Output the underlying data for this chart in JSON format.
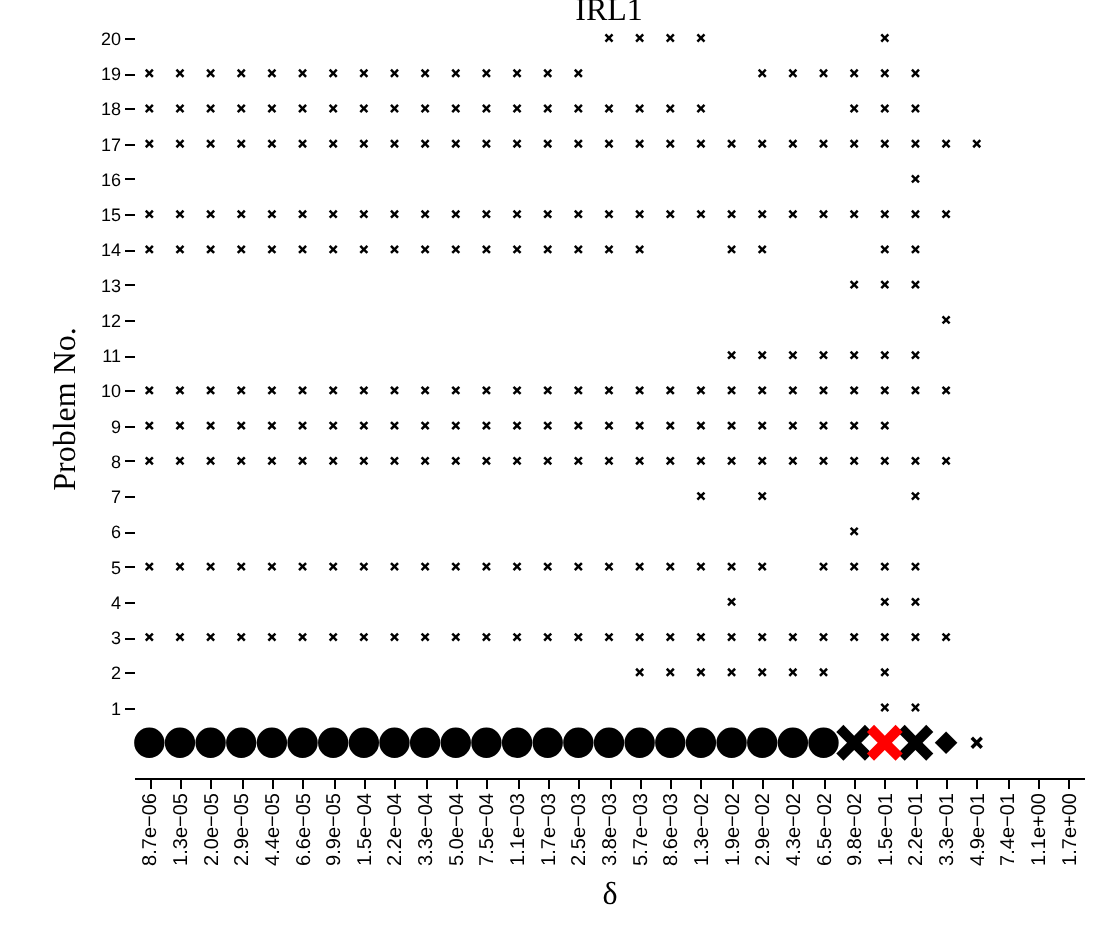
{
  "chart_data": {
    "type": "scatter",
    "title": "IRL1",
    "xlabel": "δ",
    "ylabel": "Problem No.",
    "categories": [
      "8.7e−06",
      "1.3e−05",
      "2.0e−05",
      "2.9e−05",
      "4.4e−05",
      "6.6e−05",
      "9.9e−05",
      "1.5e−04",
      "2.2e−04",
      "3.3e−04",
      "5.0e−04",
      "7.5e−04",
      "1.1e−03",
      "1.7e−03",
      "2.5e−03",
      "3.8e−03",
      "5.7e−03",
      "8.6e−03",
      "1.3e−02",
      "1.9e−02",
      "2.9e−02",
      "4.3e−02",
      "6.5e−02",
      "9.8e−02",
      "1.5e−01",
      "2.2e−01",
      "3.3e−01",
      "4.9e−01",
      "7.4e−01",
      "1.1e+00",
      "1.7e+00"
    ],
    "ylim": [
      -1,
      20
    ],
    "yticks": [
      1,
      2,
      3,
      4,
      5,
      6,
      7,
      8,
      9,
      10,
      11,
      12,
      13,
      14,
      15,
      16,
      17,
      18,
      19,
      20
    ],
    "grid": false,
    "series": [
      {
        "color": "#000000",
        "marker": "cross",
        "values": [
          null,
          null,
          null,
          null,
          null,
          null,
          null,
          null,
          null,
          null,
          null,
          null,
          null,
          null,
          null,
          20,
          20,
          20,
          20,
          null,
          null,
          null,
          null,
          null,
          20,
          null,
          null,
          null,
          null,
          null,
          null
        ]
      },
      {
        "color": "#000000",
        "marker": "cross",
        "values": [
          19,
          19,
          19,
          19,
          19,
          19,
          19,
          19,
          19,
          19,
          19,
          19,
          19,
          19,
          19,
          null,
          null,
          null,
          null,
          null,
          19,
          19,
          19,
          19,
          19,
          19,
          null,
          null,
          null,
          null,
          null
        ]
      },
      {
        "color": "#000000",
        "marker": "cross",
        "values": [
          18,
          18,
          18,
          18,
          18,
          18,
          18,
          18,
          18,
          18,
          18,
          18,
          18,
          18,
          18,
          18,
          18,
          18,
          18,
          null,
          null,
          null,
          null,
          18,
          18,
          18,
          null,
          null,
          null,
          null,
          null
        ]
      },
      {
        "color": "#000000",
        "marker": "cross",
        "values": [
          17,
          17,
          17,
          17,
          17,
          17,
          17,
          17,
          17,
          17,
          17,
          17,
          17,
          17,
          17,
          17,
          17,
          17,
          17,
          17,
          17,
          17,
          17,
          17,
          17,
          17,
          17,
          17,
          null,
          null,
          null
        ]
      },
      {
        "color": "#000000",
        "marker": "cross",
        "values": [
          null,
          null,
          null,
          null,
          null,
          null,
          null,
          null,
          null,
          null,
          null,
          null,
          null,
          null,
          null,
          null,
          null,
          null,
          null,
          null,
          null,
          null,
          null,
          null,
          null,
          16,
          null,
          null,
          null,
          null,
          null
        ]
      },
      {
        "color": "#000000",
        "marker": "cross",
        "values": [
          15,
          15,
          15,
          15,
          15,
          15,
          15,
          15,
          15,
          15,
          15,
          15,
          15,
          15,
          15,
          15,
          15,
          15,
          15,
          15,
          15,
          15,
          15,
          15,
          15,
          15,
          15,
          null,
          null,
          null,
          null
        ]
      },
      {
        "color": "#000000",
        "marker": "cross",
        "values": [
          14,
          14,
          14,
          14,
          14,
          14,
          14,
          14,
          14,
          14,
          14,
          14,
          14,
          14,
          14,
          14,
          14,
          null,
          null,
          14,
          14,
          null,
          null,
          null,
          14,
          14,
          null,
          null,
          null,
          null,
          null
        ]
      },
      {
        "color": "#000000",
        "marker": "cross",
        "values": [
          null,
          null,
          null,
          null,
          null,
          null,
          null,
          null,
          null,
          null,
          null,
          null,
          null,
          null,
          null,
          null,
          null,
          null,
          null,
          null,
          null,
          null,
          null,
          13,
          13,
          13,
          null,
          null,
          null,
          null,
          null
        ]
      },
      {
        "color": "#000000",
        "marker": "cross",
        "values": [
          null,
          null,
          null,
          null,
          null,
          null,
          null,
          null,
          null,
          null,
          null,
          null,
          null,
          null,
          null,
          null,
          null,
          null,
          null,
          null,
          null,
          null,
          null,
          null,
          null,
          null,
          12,
          null,
          null,
          null,
          null
        ]
      },
      {
        "color": "#000000",
        "marker": "cross",
        "values": [
          null,
          null,
          null,
          null,
          null,
          null,
          null,
          null,
          null,
          null,
          null,
          null,
          null,
          null,
          null,
          null,
          null,
          null,
          null,
          11,
          11,
          11,
          11,
          11,
          11,
          11,
          null,
          null,
          null,
          null,
          null
        ]
      },
      {
        "color": "#000000",
        "marker": "cross",
        "values": [
          10,
          10,
          10,
          10,
          10,
          10,
          10,
          10,
          10,
          10,
          10,
          10,
          10,
          10,
          10,
          10,
          10,
          10,
          10,
          10,
          10,
          10,
          10,
          10,
          10,
          10,
          10,
          null,
          null,
          null,
          null
        ]
      },
      {
        "color": "#000000",
        "marker": "cross",
        "values": [
          9,
          9,
          9,
          9,
          9,
          9,
          9,
          9,
          9,
          9,
          9,
          9,
          9,
          9,
          9,
          9,
          9,
          9,
          9,
          9,
          9,
          9,
          9,
          9,
          9,
          null,
          null,
          null,
          null,
          null,
          null
        ]
      },
      {
        "color": "#000000",
        "marker": "cross",
        "values": [
          8,
          8,
          8,
          8,
          8,
          8,
          8,
          8,
          8,
          8,
          8,
          8,
          8,
          8,
          8,
          8,
          8,
          8,
          8,
          8,
          8,
          8,
          8,
          8,
          8,
          8,
          8,
          null,
          null,
          null,
          null
        ]
      },
      {
        "color": "#000000",
        "marker": "cross",
        "values": [
          null,
          null,
          null,
          null,
          null,
          null,
          null,
          null,
          null,
          null,
          null,
          null,
          null,
          null,
          null,
          null,
          null,
          null,
          7,
          null,
          7,
          null,
          null,
          null,
          null,
          7,
          null,
          null,
          null,
          null,
          null
        ]
      },
      {
        "color": "#000000",
        "marker": "cross",
        "values": [
          null,
          null,
          null,
          null,
          null,
          null,
          null,
          null,
          null,
          null,
          null,
          null,
          null,
          null,
          null,
          null,
          null,
          null,
          null,
          null,
          null,
          null,
          null,
          6,
          null,
          null,
          null,
          null,
          null,
          null,
          null
        ]
      },
      {
        "color": "#000000",
        "marker": "cross",
        "values": [
          5,
          5,
          5,
          5,
          5,
          5,
          5,
          5,
          5,
          5,
          5,
          5,
          5,
          5,
          5,
          5,
          5,
          5,
          5,
          5,
          5,
          null,
          5,
          5,
          5,
          5,
          null,
          null,
          null,
          null,
          null
        ]
      },
      {
        "color": "#000000",
        "marker": "cross",
        "values": [
          null,
          null,
          null,
          null,
          null,
          null,
          null,
          null,
          null,
          null,
          null,
          null,
          null,
          null,
          null,
          null,
          null,
          null,
          null,
          4,
          null,
          null,
          null,
          null,
          4,
          4,
          null,
          null,
          null,
          null,
          null
        ]
      },
      {
        "color": "#000000",
        "marker": "cross",
        "values": [
          3,
          3,
          3,
          3,
          3,
          3,
          3,
          3,
          3,
          3,
          3,
          3,
          3,
          3,
          3,
          3,
          3,
          3,
          3,
          3,
          3,
          3,
          3,
          3,
          3,
          3,
          3,
          null,
          null,
          null,
          null
        ]
      },
      {
        "color": "#000000",
        "marker": "cross",
        "values": [
          null,
          null,
          null,
          null,
          null,
          null,
          null,
          null,
          null,
          null,
          null,
          null,
          null,
          null,
          null,
          null,
          2,
          2,
          2,
          2,
          2,
          2,
          2,
          null,
          2,
          null,
          null,
          null,
          null,
          null,
          null
        ]
      },
      {
        "color": "#000000",
        "marker": "cross",
        "values": [
          null,
          null,
          null,
          null,
          null,
          null,
          null,
          null,
          null,
          null,
          null,
          null,
          null,
          null,
          null,
          null,
          null,
          null,
          null,
          null,
          null,
          null,
          null,
          null,
          1,
          1,
          null,
          null,
          null,
          null,
          null
        ]
      },
      {
        "color": "#000000",
        "marker": "circle",
        "sizes": [
          1,
          1,
          1,
          1,
          1,
          1,
          1,
          1,
          1,
          1,
          1,
          1,
          1,
          1,
          1,
          1,
          1,
          1,
          1,
          1,
          1,
          1,
          1,
          null,
          null,
          null,
          null,
          null,
          null,
          null,
          null
        ],
        "values": [
          0,
          0,
          0,
          0,
          0,
          0,
          0,
          0,
          0,
          0,
          0,
          0,
          0,
          0,
          0,
          0,
          0,
          0,
          0,
          0,
          0,
          0,
          0,
          null,
          null,
          null,
          null,
          null,
          null,
          null,
          null
        ]
      },
      {
        "color": "#000000",
        "marker": "cross",
        "sizes": [
          null,
          null,
          null,
          null,
          null,
          null,
          null,
          null,
          null,
          null,
          null,
          null,
          null,
          null,
          null,
          null,
          null,
          null,
          null,
          null,
          null,
          null,
          null,
          1,
          null,
          1,
          null,
          null,
          null,
          null,
          null
        ],
        "values": [
          null,
          null,
          null,
          null,
          null,
          null,
          null,
          null,
          null,
          null,
          null,
          null,
          null,
          null,
          null,
          null,
          null,
          null,
          null,
          null,
          null,
          null,
          null,
          0,
          null,
          0,
          null,
          null,
          null,
          null,
          null
        ]
      },
      {
        "color": "#ff0000",
        "marker": "cross",
        "sizes": [
          null,
          null,
          null,
          null,
          null,
          null,
          null,
          null,
          null,
          null,
          null,
          null,
          null,
          null,
          null,
          null,
          null,
          null,
          null,
          null,
          null,
          null,
          null,
          null,
          1,
          null,
          null,
          null,
          null,
          null,
          null
        ],
        "values": [
          null,
          null,
          null,
          null,
          null,
          null,
          null,
          null,
          null,
          null,
          null,
          null,
          null,
          null,
          null,
          null,
          null,
          null,
          null,
          null,
          null,
          null,
          null,
          null,
          0,
          null,
          null,
          null,
          null,
          null,
          null
        ]
      },
      {
        "color": "#000000",
        "marker": "diamond",
        "sizes": [
          null,
          null,
          null,
          null,
          null,
          null,
          null,
          null,
          null,
          null,
          null,
          null,
          null,
          null,
          null,
          null,
          null,
          null,
          null,
          null,
          null,
          null,
          null,
          null,
          null,
          null,
          0.4,
          null,
          null,
          null,
          null
        ],
        "values": [
          null,
          null,
          null,
          null,
          null,
          null,
          null,
          null,
          null,
          null,
          null,
          null,
          null,
          null,
          null,
          null,
          null,
          null,
          null,
          null,
          null,
          null,
          null,
          null,
          null,
          null,
          0,
          null,
          null,
          null,
          null
        ]
      },
      {
        "color": "#000000",
        "marker": "cross",
        "sizes": [
          null,
          null,
          null,
          null,
          null,
          null,
          null,
          null,
          null,
          null,
          null,
          null,
          null,
          null,
          null,
          null,
          null,
          null,
          null,
          null,
          null,
          null,
          null,
          null,
          null,
          null,
          null,
          0.12,
          null,
          null,
          null
        ],
        "values": [
          null,
          null,
          null,
          null,
          null,
          null,
          null,
          null,
          null,
          null,
          null,
          null,
          null,
          null,
          null,
          null,
          null,
          null,
          null,
          null,
          null,
          null,
          null,
          null,
          null,
          null,
          null,
          0,
          null,
          null,
          null
        ]
      }
    ]
  }
}
